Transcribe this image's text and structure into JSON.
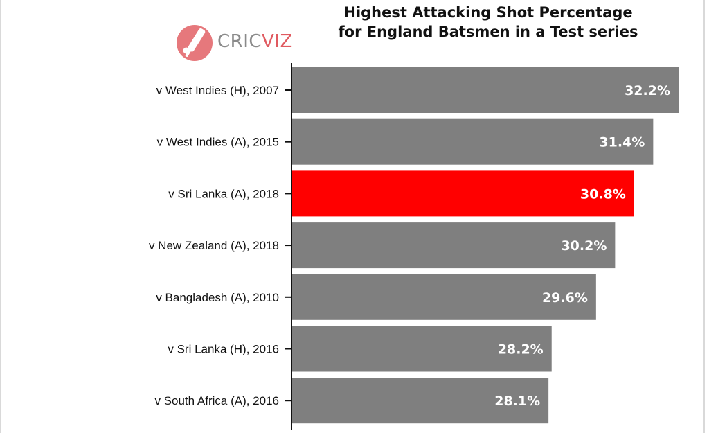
{
  "title_lines": [
    "Highest Attacking Shot Percentage",
    "for England Batsmen in a Test series"
  ],
  "logo": {
    "text_part1": "CRIC",
    "text_part2": "VIZ",
    "icon": "cricket-bat-ball-icon"
  },
  "colors": {
    "bar": "#7f7f7f",
    "highlight": "#ff0000",
    "label": "#ffffff",
    "axis": "#111111"
  },
  "chart_data": {
    "type": "bar",
    "orientation": "horizontal",
    "categories": [
      "v West Indies (H), 2007",
      "v West Indies (A), 2015",
      "v Sri Lanka (A), 2018",
      "v New Zealand (A), 2018",
      "v Bangladesh (A), 2010",
      "v Sri Lanka (H), 2016",
      "v South Africa (A), 2016"
    ],
    "values": [
      32.2,
      31.4,
      30.8,
      30.2,
      29.6,
      28.2,
      28.1
    ],
    "labels": [
      "32.2%",
      "31.4%",
      "30.8%",
      "30.2%",
      "29.6%",
      "28.2%",
      "28.1%"
    ],
    "highlight_index": 2,
    "title": "Highest Attacking Shot Percentage for England Batsmen in a Test series",
    "xlabel": "",
    "ylabel": "",
    "xlim": [
      20,
      32.2
    ],
    "grid": false,
    "legend": "none"
  }
}
